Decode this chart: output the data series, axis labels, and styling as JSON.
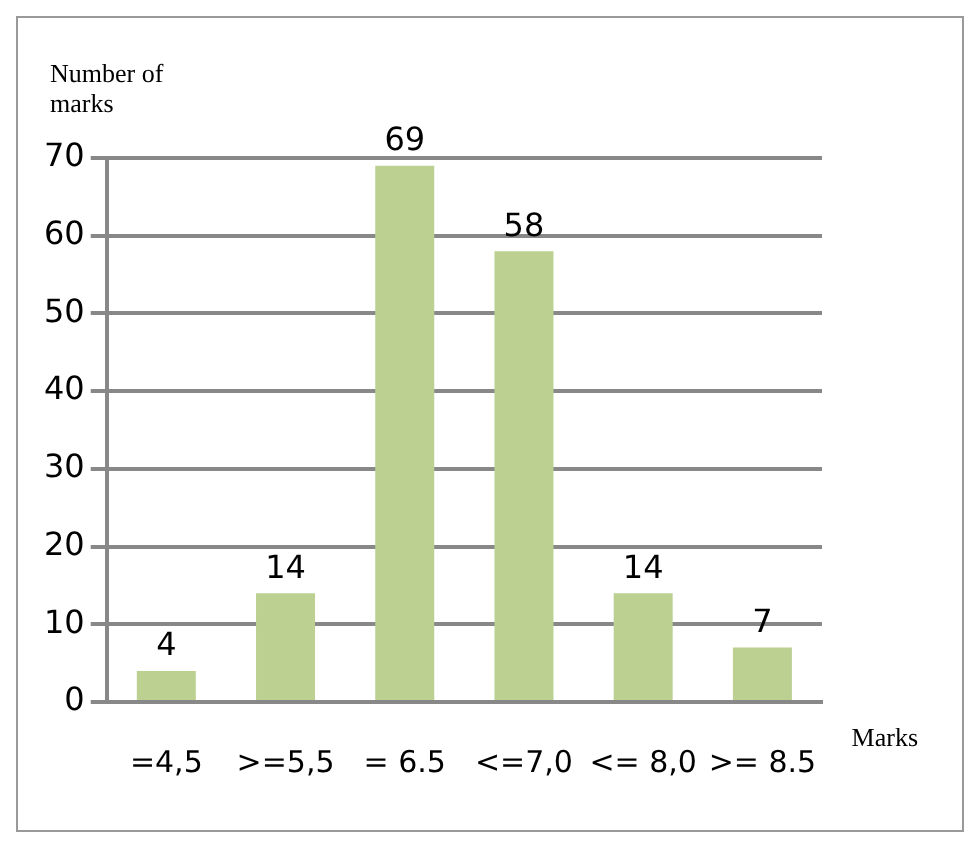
{
  "chart_data": {
    "type": "bar",
    "xlabel": "Marks",
    "ylabel": "Number of marks",
    "categories": [
      "=4,5",
      ">=5,5",
      "= 6.5",
      "<=7,0",
      "<= 8,0",
      ">= 8.5"
    ],
    "values": [
      4,
      14,
      69,
      58,
      14,
      7
    ],
    "color": "#bcd092",
    "ylim": [
      0,
      70
    ],
    "yticks": [
      0,
      10,
      20,
      30,
      40,
      50,
      60,
      70
    ],
    "grid": "y",
    "data_labels": true,
    "legend": false
  }
}
